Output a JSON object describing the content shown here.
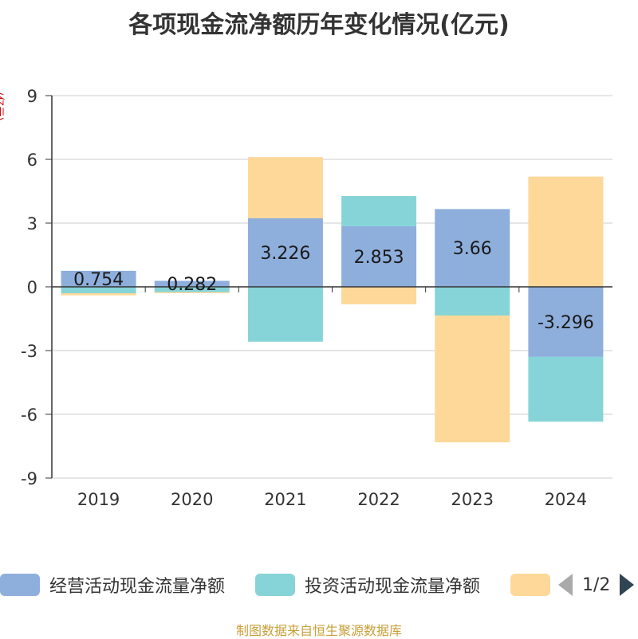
{
  "chart_data": {
    "type": "bar",
    "stacked": true,
    "title": "各项现金流净额历年变化情况(亿元)",
    "ylabel": "(亿元)",
    "ylim": [
      -9,
      9
    ],
    "yticks": [
      9,
      6,
      3,
      0,
      -3,
      -6,
      -9
    ],
    "categories": [
      "2019",
      "2020",
      "2021",
      "2022",
      "2023",
      "2024"
    ],
    "series": [
      {
        "name": "经营活动现金流量净额",
        "color": "#8eaedc",
        "values": [
          0.754,
          0.282,
          3.226,
          2.853,
          3.66,
          -3.296
        ],
        "labels": [
          "0.754",
          "0.282",
          "3.226",
          "2.853",
          "3.66",
          "-3.296"
        ]
      },
      {
        "name": "投资活动现金流量净额",
        "color": "#86d4d8",
        "values": [
          -0.3,
          -0.25,
          -2.58,
          1.42,
          -1.35,
          -3.05
        ]
      },
      {
        "name": "",
        "color": "#fdd899",
        "values": [
          -0.1,
          -0.05,
          2.88,
          -0.82,
          -5.97,
          5.19
        ]
      }
    ],
    "legend_position": "bottom"
  },
  "legend": {
    "items": [
      "经营活动现金流量净额",
      "投资活动现金流量净额",
      ""
    ],
    "page": "1/2"
  },
  "footer": "制图数据来自恒生聚源数据库"
}
